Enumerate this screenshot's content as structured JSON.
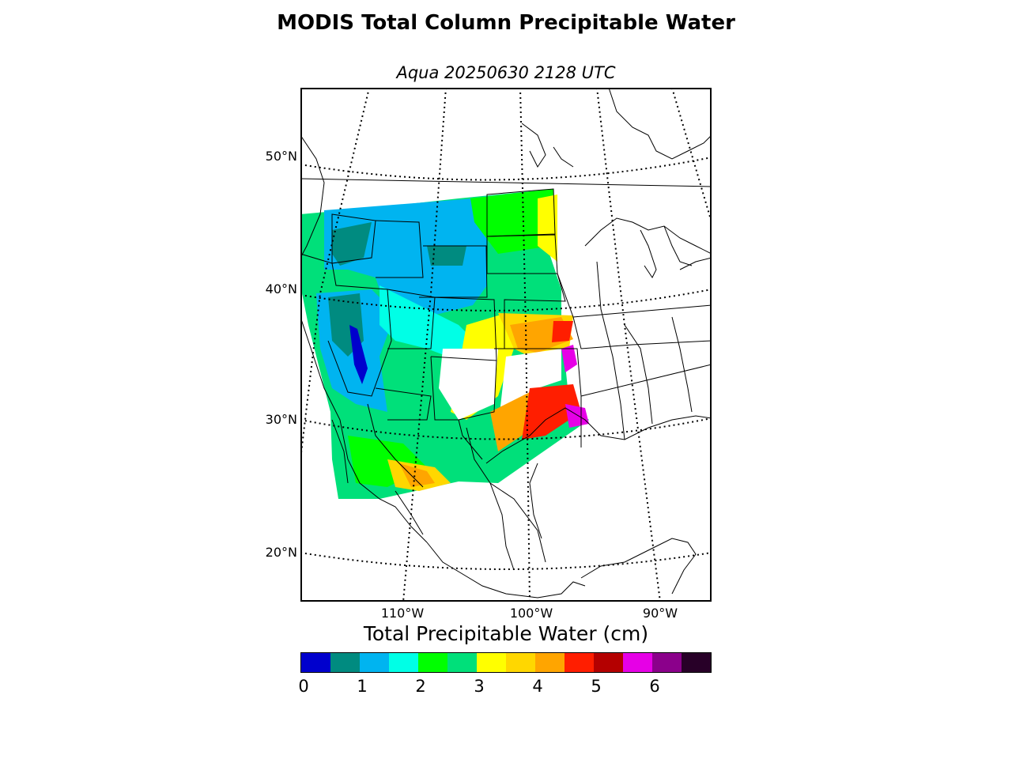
{
  "title": "MODIS Total Column Precipitable Water",
  "subtitle": "Aqua 20250630 2128 UTC",
  "map": {
    "projection": "lambert-conformal",
    "lat_labels": [
      "50°N",
      "40°N",
      "30°N",
      "20°N"
    ],
    "lon_labels": [
      "110°W",
      "100°W",
      "90°W"
    ],
    "graticule_style": "dotted"
  },
  "colorbar": {
    "label": "Total Precipitable Water (cm)",
    "ticks": [
      "0",
      "1",
      "2",
      "3",
      "4",
      "5",
      "6"
    ],
    "colors": [
      "#0000cd",
      "#008b80",
      "#00b4f0",
      "#00ffe6",
      "#00ff00",
      "#00e07a",
      "#ffff00",
      "#ffd700",
      "#ffa500",
      "#ff1e00",
      "#b40000",
      "#e600e6",
      "#8b008b",
      "#280028"
    ]
  }
}
